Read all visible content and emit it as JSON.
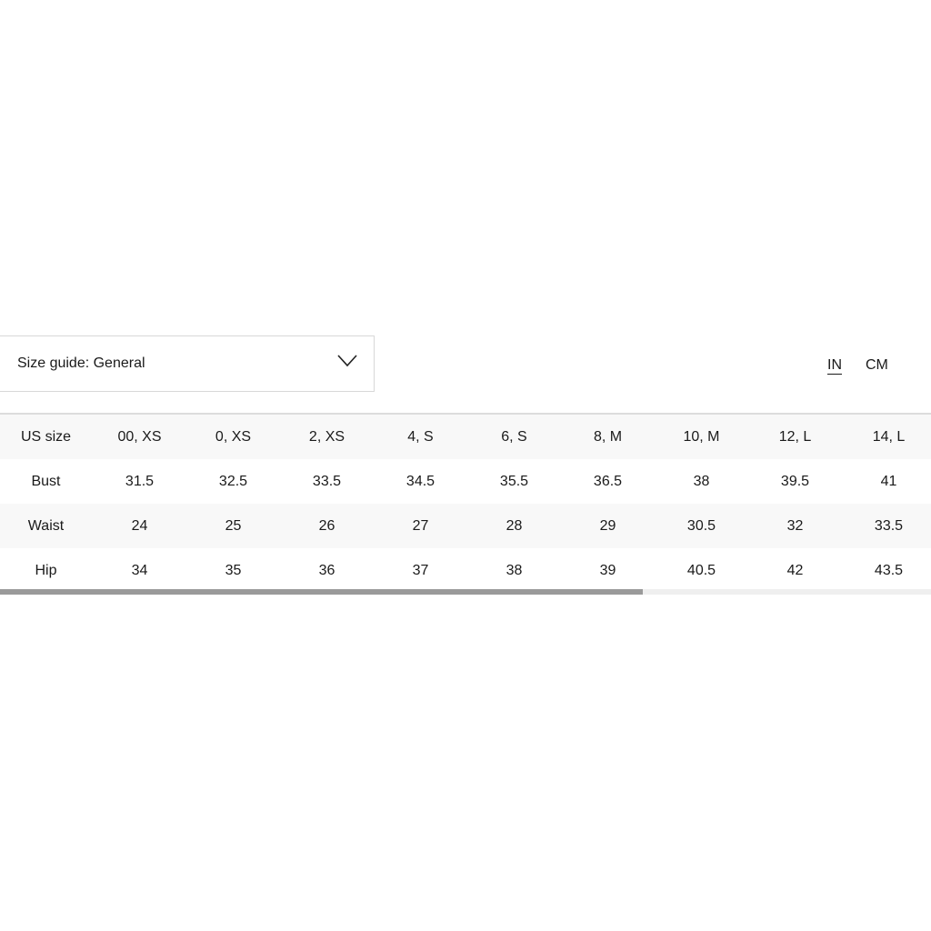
{
  "size_guide": {
    "label": "Size guide: General",
    "icon": "chevron-down-icon"
  },
  "units": {
    "options": [
      "IN",
      "CM"
    ],
    "selected": "IN"
  },
  "table": {
    "rows": [
      [
        "US size",
        "00, XS",
        "0, XS",
        "2, XS",
        "4, S",
        "6, S",
        "8, M",
        "10, M",
        "12, L",
        "14, L"
      ],
      [
        "Bust",
        "31.5",
        "32.5",
        "33.5",
        "34.5",
        "35.5",
        "36.5",
        "38",
        "39.5",
        "41"
      ],
      [
        "Waist",
        "24",
        "25",
        "26",
        "27",
        "28",
        "29",
        "30.5",
        "32",
        "33.5"
      ],
      [
        "Hip",
        "34",
        "35",
        "36",
        "37",
        "38",
        "39",
        "40.5",
        "42",
        "43.5"
      ]
    ]
  },
  "scrollbar": {
    "thumb_fraction": 0.69,
    "position_fraction": 0
  }
}
